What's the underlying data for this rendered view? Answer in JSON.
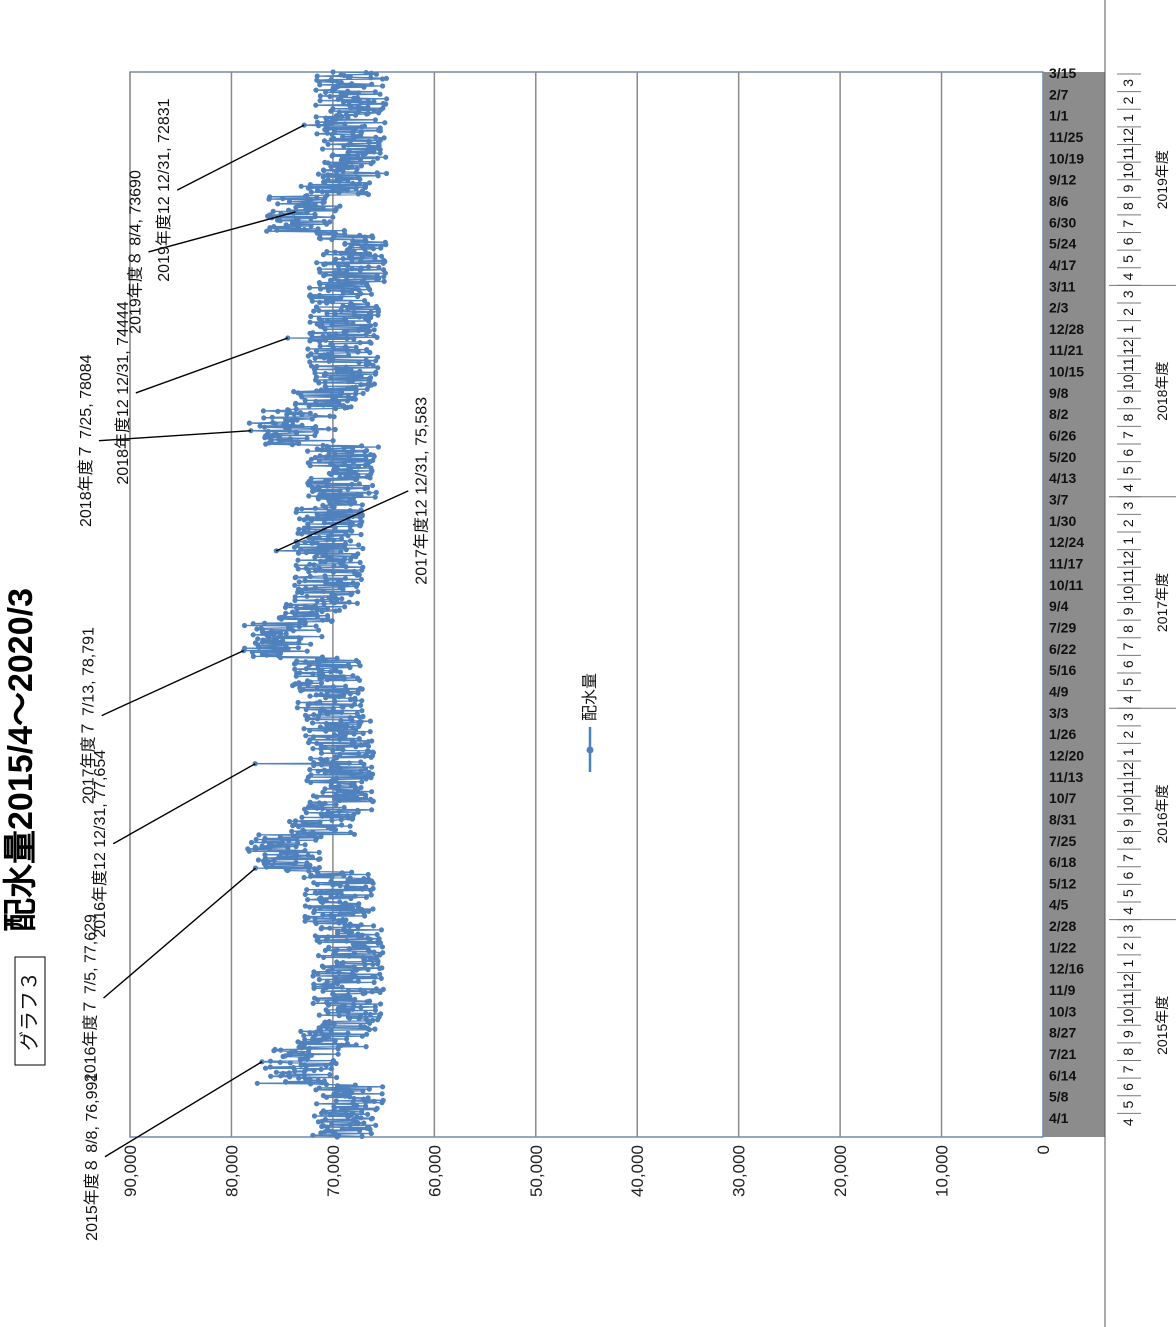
{
  "chart_data": {
    "type": "line",
    "title": "配水量2015/4～2020/3",
    "graph_label": "グラフ３",
    "series": [
      {
        "name": "配水量",
        "color": "#4f81bd"
      }
    ],
    "ylim": [
      0,
      90000
    ],
    "y_ticks": [
      "0",
      "10,000",
      "20,000",
      "30,000",
      "40,000",
      "50,000",
      "60,000",
      "70,000",
      "80,000",
      "90,000"
    ],
    "x_date_start": "2015/4/1",
    "x_date_end": "2020/3/31",
    "x_tick_labels": [
      "4/1",
      "5/8",
      "6/14",
      "7/21",
      "8/27",
      "10/3",
      "11/9",
      "12/16",
      "1/22",
      "2/28",
      "4/5",
      "5/12",
      "6/18",
      "7/25",
      "8/31",
      "10/7",
      "11/13",
      "12/20",
      "1/26",
      "3/3",
      "4/9",
      "5/16",
      "6/22",
      "7/29",
      "9/4",
      "10/11",
      "11/17",
      "12/24",
      "1/30",
      "3/7",
      "4/13",
      "5/20",
      "6/26",
      "8/2",
      "9/8",
      "10/15",
      "11/21",
      "12/28",
      "2/3",
      "3/11",
      "4/17",
      "5/24",
      "6/30",
      "8/6",
      "9/12",
      "10/19",
      "11/25",
      "1/1",
      "2/7",
      "3/15"
    ],
    "month_labels": [
      "4",
      "5",
      "6",
      "7",
      "8",
      "9",
      "10",
      "11",
      "12",
      "1",
      "2",
      "3"
    ],
    "fiscal_years": [
      "2015年度",
      "2016年度",
      "2017年度",
      "2018年度",
      "2019年度"
    ],
    "grid": true,
    "legend_position": "center",
    "baseline_by_fiscal_year": [
      68500,
      69500,
      70500,
      69000,
      68200
    ],
    "annotations": [
      {
        "text": "2015年度８ 8/8, 76,991",
        "date": "2015/8/8",
        "value": 76991
      },
      {
        "text": "2016年度７ 7/5, 77,629",
        "date": "2016/7/5",
        "value": 77629
      },
      {
        "text": "2016年度12 12/31, 77,654",
        "date": "2016/12/31",
        "value": 77654
      },
      {
        "text": "2017年度７ 7/13, 78,791",
        "date": "2017/7/13",
        "value": 78791
      },
      {
        "text": "2017年度12 12/31, 75,583",
        "date": "2017/12/31",
        "value": 75583
      },
      {
        "text": "2018年度７ 7/25, 78084",
        "date": "2018/7/25",
        "value": 78084
      },
      {
        "text": "2018年度12 12/31, 74444",
        "date": "2018/12/31",
        "value": 74444
      },
      {
        "text": "2019年度８ 8/4, 73690",
        "date": "2019/8/4",
        "value": 73690
      },
      {
        "text": "2019年度12 12/31, 72831",
        "date": "2019/12/31",
        "value": 72831
      }
    ]
  }
}
